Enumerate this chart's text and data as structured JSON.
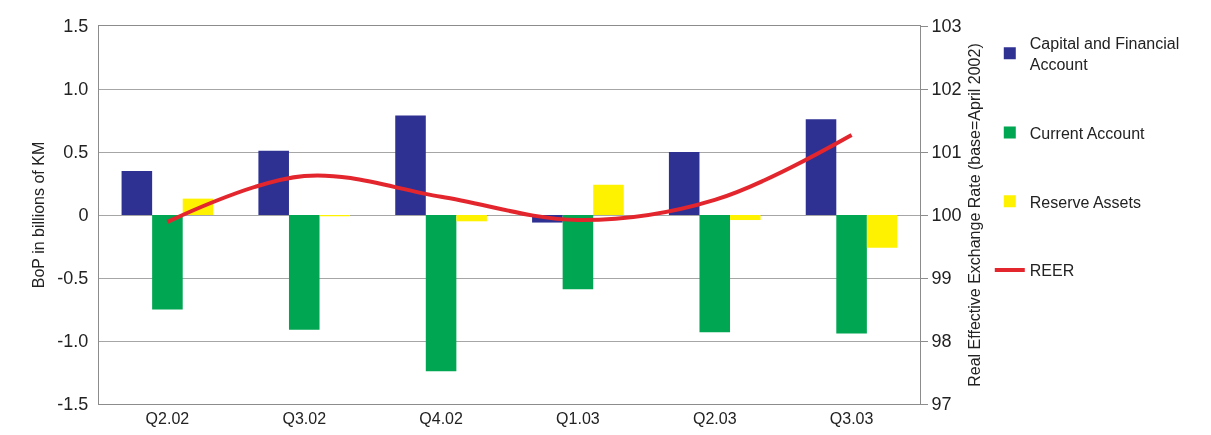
{
  "chart_data": {
    "type": "bar",
    "categories": [
      "Q2.02",
      "Q3.02",
      "Q4.02",
      "Q1.03",
      "Q2.03",
      "Q3.03"
    ],
    "series": [
      {
        "name": "Capital and Financial Account",
        "color": "#2e3192",
        "values": [
          0.35,
          0.51,
          0.79,
          -0.06,
          0.5,
          0.76
        ]
      },
      {
        "name": "Current Account",
        "color": "#00a651",
        "values": [
          -0.75,
          -0.91,
          -1.24,
          -0.59,
          -0.93,
          -0.94
        ]
      },
      {
        "name": "Reserve Assets",
        "color": "#fff200",
        "values": [
          0.13,
          -0.01,
          -0.05,
          0.24,
          -0.04,
          -0.26
        ]
      },
      {
        "name": "REER",
        "type": "line",
        "axis": "y2",
        "color": "#e3262d",
        "values": [
          99.89,
          100.62,
          100.29,
          99.92,
          100.24,
          101.27
        ]
      }
    ],
    "ylabel": "BoP in billions of KM",
    "y2label": "Real Effective Exchange Rate (base=April 2002)",
    "ylim": [
      -1.5,
      1.5
    ],
    "yticks": [
      -1.5,
      {
        "value": -1,
        "label": "-1.0"
      },
      -0.5,
      0,
      0.5,
      {
        "value": 1,
        "label": "1.0"
      },
      1.5
    ],
    "y2lim": [
      97,
      103
    ],
    "y2ticks": [
      97,
      98,
      99,
      100,
      101,
      102,
      103
    ],
    "grid": "y",
    "legend": "right"
  }
}
